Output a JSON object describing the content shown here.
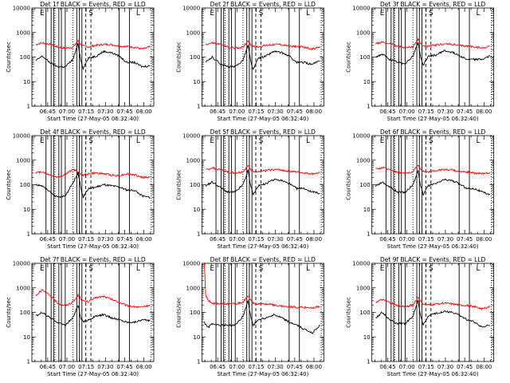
{
  "figure": {
    "ylabel": "Counts/sec",
    "xtick_labels": [
      "06:45",
      "07:00",
      "07:15",
      "07:30",
      "07:45",
      "08:00"
    ],
    "y_tick_labels": [
      "1",
      "10",
      "100",
      "1000",
      "10000"
    ],
    "xlabel": "Start Time (27-May-05 06:32:40)",
    "series_colors": {
      "events": "#000000",
      "lld": "#ff0000"
    },
    "line_style_markers": {
      "solid": "solid",
      "dashed": "dashed",
      "dotted": "dotted"
    }
  },
  "chart_data": [
    {
      "type": "line",
      "title": "Det 1f BLACK = Events, RED = LLD",
      "xlabel": "Start Time (27-May-05 06:32:40)",
      "ylabel": "Counts/sec",
      "x_unit": "minutes after 06:32:40",
      "xlim": [
        0,
        95
      ],
      "ylim": [
        1,
        10000
      ],
      "yscale": "log",
      "series": [
        {
          "color": "#ff0000",
          "x": [
            3,
            8,
            14,
            20,
            26,
            32,
            36,
            38,
            40,
            44,
            50,
            56,
            62,
            68,
            74,
            80,
            86,
            92
          ],
          "values": [
            320,
            380,
            330,
            260,
            230,
            250,
            480,
            330,
            280,
            260,
            300,
            330,
            320,
            280,
            270,
            250,
            210,
            260
          ]
        },
        {
          "color": "#000000",
          "x": [
            3,
            8,
            14,
            20,
            26,
            32,
            36,
            38,
            40,
            44,
            50,
            56,
            62,
            68,
            74,
            80,
            86,
            92
          ],
          "values": [
            70,
            110,
            60,
            40,
            40,
            80,
            350,
            80,
            35,
            90,
            110,
            170,
            150,
            110,
            60,
            60,
            40,
            45
          ]
        }
      ],
      "solid_lines": [
        11,
        15,
        17,
        21,
        23,
        26,
        35,
        37,
        39,
        68,
        76
      ],
      "dashed_lines": [
        42,
        46
      ],
      "dotted_lines": [
        18,
        32,
        93
      ],
      "markers": {
        "E": 5,
        "S": 43,
        "L": 80
      }
    },
    {
      "type": "line",
      "title": "Det 2f BLACK = Events, RED = LLD",
      "xlabel": "Start Time (27-May-05 06:32:40)",
      "ylabel": "Counts/sec",
      "x_unit": "minutes after 06:32:40",
      "xlim": [
        0,
        95
      ],
      "ylim": [
        1,
        10000
      ],
      "yscale": "log",
      "series": [
        {
          "color": "#ff0000",
          "x": [
            3,
            8,
            14,
            20,
            26,
            32,
            36,
            38,
            40,
            44,
            50,
            56,
            62,
            68,
            74,
            80,
            86,
            92
          ],
          "values": [
            320,
            380,
            330,
            260,
            230,
            250,
            480,
            330,
            280,
            260,
            300,
            330,
            320,
            280,
            270,
            250,
            210,
            260
          ]
        },
        {
          "color": "#000000",
          "x": [
            3,
            8,
            14,
            20,
            26,
            32,
            36,
            38,
            40,
            44,
            50,
            56,
            62,
            68,
            74,
            80,
            86,
            92
          ],
          "values": [
            60,
            100,
            55,
            40,
            40,
            75,
            300,
            70,
            30,
            90,
            110,
            170,
            150,
            110,
            60,
            60,
            50,
            70
          ]
        }
      ],
      "solid_lines": [
        11,
        15,
        17,
        21,
        23,
        26,
        35,
        37,
        39,
        68,
        76
      ],
      "dashed_lines": [
        42,
        46
      ],
      "dotted_lines": [
        18,
        32,
        93
      ],
      "markers": {
        "E": 5,
        "S": 43,
        "L": 80
      }
    },
    {
      "type": "line",
      "title": "Det 3f BLACK = Events, RED = LLD",
      "xlabel": "Start Time (27-May-05 06:32:40)",
      "ylabel": "Counts/sec",
      "x_unit": "minutes after 06:32:40",
      "xlim": [
        0,
        95
      ],
      "ylim": [
        1,
        10000
      ],
      "yscale": "log",
      "series": [
        {
          "color": "#ff0000",
          "x": [
            3,
            8,
            14,
            20,
            26,
            32,
            36,
            38,
            40,
            44,
            50,
            56,
            62,
            68,
            74,
            80,
            86,
            92
          ],
          "values": [
            350,
            400,
            350,
            280,
            240,
            260,
            520,
            350,
            290,
            270,
            310,
            340,
            330,
            290,
            280,
            260,
            230,
            280
          ]
        },
        {
          "color": "#000000",
          "x": [
            3,
            8,
            14,
            20,
            26,
            32,
            36,
            38,
            40,
            44,
            50,
            56,
            62,
            68,
            74,
            80,
            86,
            92
          ],
          "values": [
            100,
            130,
            80,
            60,
            55,
            110,
            400,
            100,
            45,
            110,
            120,
            180,
            160,
            120,
            80,
            80,
            80,
            110
          ]
        }
      ],
      "solid_lines": [
        11,
        15,
        17,
        21,
        23,
        26,
        35,
        37,
        39,
        68,
        76
      ],
      "dashed_lines": [
        42,
        46
      ],
      "dotted_lines": [
        18,
        32,
        93
      ],
      "markers": {
        "E": 5,
        "S": 43,
        "L": 80
      }
    },
    {
      "type": "line",
      "title": "Det 4f BLACK = Events, RED = LLD",
      "xlabel": "Start Time (27-May-05 06:32:40)",
      "ylabel": "Counts/sec",
      "x_unit": "minutes after 06:32:40",
      "xlim": [
        0,
        95
      ],
      "ylim": [
        1,
        10000
      ],
      "yscale": "log",
      "series": [
        {
          "color": "#ff0000",
          "x": [
            3,
            8,
            14,
            20,
            26,
            32,
            36,
            38,
            40,
            44,
            50,
            56,
            62,
            68,
            74,
            80,
            86,
            92
          ],
          "values": [
            300,
            340,
            250,
            200,
            260,
            420,
            330,
            260,
            240,
            280,
            300,
            280,
            250,
            230,
            280,
            250,
            200,
            200
          ]
        },
        {
          "color": "#000000",
          "x": [
            3,
            8,
            14,
            20,
            26,
            32,
            36,
            38,
            40,
            44,
            50,
            56,
            62,
            68,
            74,
            80,
            86,
            92
          ],
          "values": [
            100,
            90,
            50,
            30,
            35,
            120,
            300,
            80,
            30,
            70,
            80,
            100,
            90,
            80,
            60,
            60,
            35,
            30
          ]
        }
      ],
      "solid_lines": [
        11,
        15,
        17,
        21,
        23,
        26,
        35,
        37,
        39,
        68,
        76
      ],
      "dashed_lines": [
        42,
        46
      ],
      "dotted_lines": [
        18,
        32,
        93
      ],
      "markers": {
        "E": 5,
        "S": 43,
        "L": 80
      }
    },
    {
      "type": "line",
      "title": "Det 5f BLACK = Events, RED = LLD",
      "xlabel": "Start Time (27-May-05 06:32:40)",
      "ylabel": "Counts/sec",
      "x_unit": "minutes after 06:32:40",
      "xlim": [
        0,
        95
      ],
      "ylim": [
        1,
        10000
      ],
      "yscale": "log",
      "series": [
        {
          "color": "#ff0000",
          "x": [
            3,
            8,
            14,
            20,
            26,
            32,
            36,
            38,
            40,
            44,
            50,
            56,
            62,
            68,
            74,
            80,
            86,
            92
          ],
          "values": [
            400,
            480,
            420,
            330,
            300,
            340,
            600,
            420,
            360,
            330,
            380,
            420,
            400,
            350,
            330,
            300,
            280,
            300
          ]
        },
        {
          "color": "#000000",
          "x": [
            3,
            8,
            14,
            20,
            26,
            32,
            36,
            38,
            40,
            44,
            50,
            56,
            62,
            68,
            74,
            80,
            86,
            92
          ],
          "values": [
            90,
            130,
            80,
            50,
            50,
            100,
            380,
            90,
            40,
            90,
            110,
            160,
            150,
            110,
            70,
            70,
            50,
            45
          ]
        }
      ],
      "solid_lines": [
        11,
        15,
        17,
        21,
        23,
        26,
        35,
        37,
        39,
        68,
        76
      ],
      "dashed_lines": [
        42,
        46
      ],
      "dotted_lines": [
        18,
        32,
        93
      ],
      "markers": {
        "E": 5,
        "S": 43,
        "L": 80
      }
    },
    {
      "type": "line",
      "title": "Det 6f BLACK = Events, RED = LLD",
      "xlabel": "Start Time (27-May-05 06:32:40)",
      "ylabel": "Counts/sec",
      "x_unit": "minutes after 06:32:40",
      "xlim": [
        0,
        95
      ],
      "ylim": [
        1,
        10000
      ],
      "yscale": "log",
      "series": [
        {
          "color": "#ff0000",
          "x": [
            3,
            8,
            14,
            20,
            26,
            32,
            36,
            38,
            40,
            44,
            50,
            56,
            62,
            68,
            74,
            80,
            86,
            92
          ],
          "values": [
            420,
            500,
            420,
            320,
            290,
            330,
            650,
            420,
            350,
            330,
            380,
            420,
            400,
            350,
            330,
            300,
            280,
            320
          ]
        },
        {
          "color": "#000000",
          "x": [
            3,
            8,
            14,
            20,
            26,
            32,
            36,
            38,
            40,
            44,
            50,
            56,
            62,
            68,
            74,
            80,
            86,
            92
          ],
          "values": [
            90,
            130,
            80,
            50,
            50,
            100,
            380,
            90,
            40,
            90,
            110,
            160,
            150,
            110,
            70,
            70,
            50,
            40
          ]
        }
      ],
      "solid_lines": [
        11,
        15,
        17,
        21,
        23,
        26,
        35,
        37,
        39,
        68,
        76
      ],
      "dashed_lines": [
        42,
        46
      ],
      "dotted_lines": [
        18,
        32,
        93
      ],
      "markers": {
        "E": 5,
        "S": 43,
        "L": 80
      }
    },
    {
      "type": "line",
      "title": "Det 7f BLACK = Events, RED = LLD",
      "xlabel": "Start Time (27-May-05 06:32:40)",
      "ylabel": "Counts/sec",
      "x_unit": "minutes after 06:32:40",
      "xlim": [
        0,
        95
      ],
      "ylim": [
        1,
        10000
      ],
      "yscale": "log",
      "series": [
        {
          "color": "#ff0000",
          "x": [
            3,
            8,
            14,
            20,
            26,
            32,
            36,
            38,
            40,
            44,
            50,
            56,
            62,
            68,
            74,
            80,
            86,
            92
          ],
          "values": [
            500,
            800,
            500,
            240,
            190,
            260,
            500,
            380,
            290,
            270,
            400,
            450,
            340,
            260,
            190,
            170,
            160,
            200
          ]
        },
        {
          "color": "#000000",
          "x": [
            3,
            8,
            14,
            20,
            26,
            32,
            36,
            38,
            40,
            44,
            50,
            56,
            62,
            68,
            74,
            80,
            86,
            92
          ],
          "values": [
            70,
            100,
            60,
            40,
            30,
            60,
            200,
            60,
            40,
            50,
            70,
            80,
            60,
            50,
            40,
            40,
            50,
            45
          ]
        }
      ],
      "solid_lines": [
        11,
        15,
        17,
        21,
        23,
        26,
        35,
        37,
        39,
        68,
        76
      ],
      "dashed_lines": [
        42,
        46
      ],
      "dotted_lines": [
        18,
        32,
        93
      ],
      "markers": {
        "E": 5,
        "S": 43,
        "L": 80
      }
    },
    {
      "type": "line",
      "title": "Det 8f BLACK = Events, RED = LLD",
      "xlabel": "Start Time (27-May-05 06:32:40)",
      "ylabel": "Counts/sec",
      "x_unit": "minutes after 06:32:40",
      "xlim": [
        0,
        95
      ],
      "ylim": [
        1,
        10000
      ],
      "yscale": "log",
      "series": [
        {
          "color": "#ff0000",
          "x": [
            2,
            3,
            5,
            8,
            14,
            20,
            26,
            32,
            36,
            38,
            40,
            44,
            50,
            56,
            62,
            68,
            74,
            80,
            86,
            92
          ],
          "values": [
            10000,
            500,
            300,
            240,
            230,
            220,
            220,
            260,
            450,
            310,
            240,
            220,
            220,
            200,
            180,
            170,
            160,
            160,
            150,
            180
          ]
        },
        {
          "color": "#000000",
          "x": [
            2,
            3,
            5,
            8,
            14,
            20,
            26,
            32,
            36,
            38,
            40,
            44,
            50,
            56,
            62,
            68,
            74,
            80,
            86,
            92
          ],
          "values": [
            40,
            30,
            25,
            35,
            30,
            30,
            30,
            70,
            300,
            70,
            30,
            50,
            60,
            80,
            60,
            40,
            30,
            20,
            15,
            30
          ]
        }
      ],
      "solid_lines": [
        11,
        15,
        17,
        21,
        23,
        26,
        35,
        37,
        39,
        68,
        76
      ],
      "dashed_lines": [
        42,
        46
      ],
      "dotted_lines": [
        18,
        32,
        93
      ],
      "markers": {
        "E": 5,
        "S": 43,
        "L": 80
      }
    },
    {
      "type": "line",
      "title": "Det 9f BLACK = Events, RED = LLD",
      "xlabel": "Start Time (27-May-05 06:32:40)",
      "ylabel": "Counts/sec",
      "x_unit": "minutes after 06:32:40",
      "xlim": [
        0,
        95
      ],
      "ylim": [
        1,
        10000
      ],
      "yscale": "log",
      "series": [
        {
          "color": "#ff0000",
          "x": [
            3,
            8,
            14,
            20,
            26,
            32,
            36,
            38,
            40,
            44,
            50,
            56,
            62,
            68,
            74,
            80,
            86,
            92
          ],
          "values": [
            260,
            330,
            250,
            190,
            170,
            200,
            420,
            280,
            220,
            200,
            220,
            240,
            220,
            200,
            190,
            170,
            140,
            170
          ]
        },
        {
          "color": "#000000",
          "x": [
            3,
            8,
            14,
            20,
            26,
            32,
            36,
            38,
            40,
            44,
            50,
            56,
            62,
            68,
            74,
            80,
            86,
            92
          ],
          "values": [
            60,
            100,
            50,
            35,
            35,
            70,
            300,
            70,
            30,
            70,
            90,
            110,
            100,
            80,
            50,
            40,
            25,
            30
          ]
        }
      ],
      "solid_lines": [
        11,
        15,
        17,
        21,
        23,
        26,
        35,
        37,
        39,
        68,
        76
      ],
      "dashed_lines": [
        42,
        46
      ],
      "dotted_lines": [
        18,
        32,
        93
      ],
      "markers": {
        "E": 5,
        "S": 43,
        "L": 80
      }
    }
  ]
}
